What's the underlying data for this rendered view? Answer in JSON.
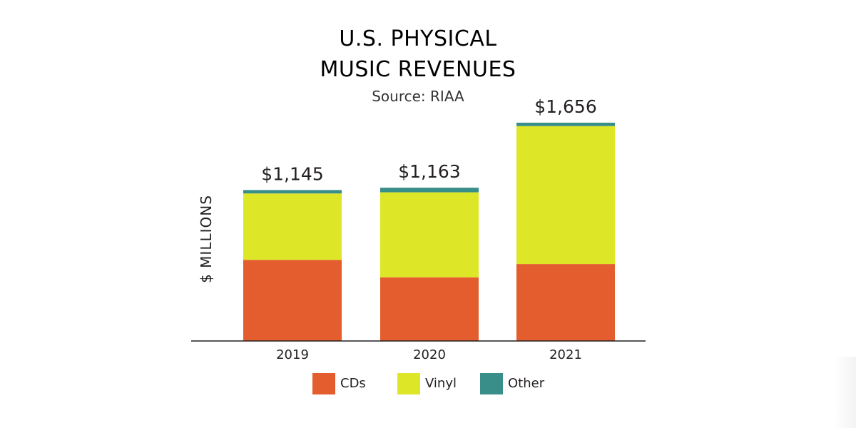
{
  "chart_data": {
    "type": "bar",
    "stacked": true,
    "title_lines": [
      "U.S. PHYSICAL",
      "MUSIC REVENUES"
    ],
    "subtitle": "Source: RIAA",
    "xlabel": "",
    "ylabel": "$ MILLIONS",
    "categories": [
      "2019",
      "2020",
      "2021"
    ],
    "totals_labels": [
      "$1,145",
      "$1,163",
      "$1,656"
    ],
    "totals": [
      1145,
      1163,
      1656
    ],
    "ylim": [
      0,
      1656
    ],
    "grid": false,
    "legend_position": "bottom",
    "series": [
      {
        "name": "CDs",
        "color": "#e35d2e",
        "values": [
          615,
          483,
          584
        ]
      },
      {
        "name": "Vinyl",
        "color": "#dde627",
        "values": [
          504,
          645,
          1046
        ]
      },
      {
        "name": "Other",
        "color": "#3a8e8a",
        "values": [
          26,
          35,
          26
        ]
      }
    ]
  }
}
